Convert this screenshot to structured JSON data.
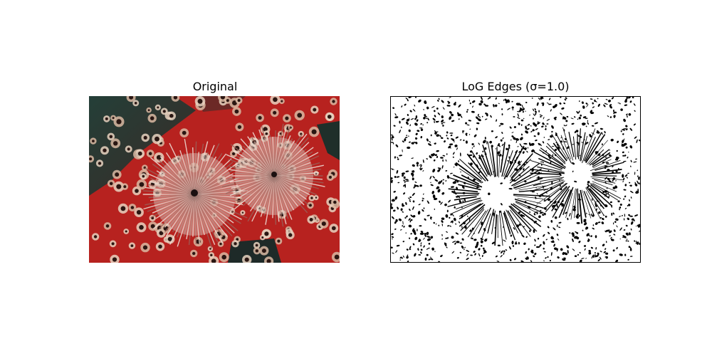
{
  "figure": {
    "panels": [
      {
        "title": "Original"
      },
      {
        "title": "LoG Edges (σ=1.0)"
      }
    ]
  },
  "colors": {
    "background": "#ffffff",
    "title_text": "#000000",
    "sponge_red": "#c8201e",
    "sea_dark": "#1e3a32",
    "worm_pink": "#c89088",
    "edge_black": "#000000",
    "edge_white": "#ffffff"
  }
}
